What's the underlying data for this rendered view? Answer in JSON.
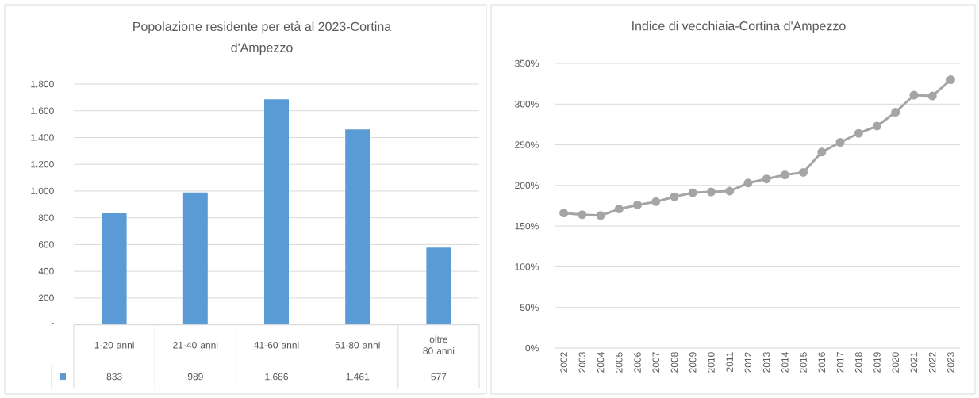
{
  "chart_data": [
    {
      "type": "bar",
      "title": "Popolazione residente per età al 2023-Cortina d'Ampezzo",
      "categories": [
        "1-20 anni",
        "21-40 anni",
        "41-60 anni",
        "61-80 anni",
        "oltre 80 anni"
      ],
      "values": [
        833,
        989,
        1686,
        1461,
        577
      ],
      "color": "#5b9bd5",
      "value_labels": [
        "833",
        "989",
        "1.686",
        "1.461",
        "577"
      ],
      "ylim": [
        0,
        1800
      ],
      "yticks": [
        {
          "value": 0,
          "label": "-"
        },
        200,
        400,
        600,
        800,
        {
          "value": 1000,
          "label": "1.000"
        },
        {
          "value": 1200,
          "label": "1.200"
        },
        {
          "value": 1400,
          "label": "1.400"
        },
        {
          "value": 1600,
          "label": "1.600"
        },
        {
          "value": 1800,
          "label": "1.800"
        }
      ],
      "grid": "y"
    },
    {
      "type": "line",
      "title": "Indice di vecchiaia-Cortina d'Ampezzo",
      "categories": [
        "2002",
        "2003",
        "2004",
        "2005",
        "2006",
        "2007",
        "2008",
        "2009",
        "2010",
        "2011",
        "2012",
        "2013",
        "2014",
        "2015",
        "2016",
        "2017",
        "2018",
        "2019",
        "2020",
        "2021",
        "2022",
        "2023"
      ],
      "values": [
        166,
        164,
        163,
        171,
        176,
        180,
        186,
        191,
        192,
        193,
        203,
        208,
        213,
        216,
        241,
        253,
        264,
        273,
        290,
        311,
        310,
        330
      ],
      "color": "#a5a5a5",
      "marker": "circle",
      "line_style": "solid",
      "ylim": [
        0,
        350
      ],
      "yticks": [
        {
          "value": 0,
          "label": "0%"
        },
        {
          "value": 50,
          "label": "50%"
        },
        {
          "value": 100,
          "label": "100%"
        },
        {
          "value": 150,
          "label": "150%"
        },
        {
          "value": 200,
          "label": "200%"
        },
        {
          "value": 250,
          "label": "250%"
        },
        {
          "value": 300,
          "label": "300%"
        },
        {
          "value": 350,
          "label": "350%"
        }
      ],
      "grid": "y"
    }
  ]
}
